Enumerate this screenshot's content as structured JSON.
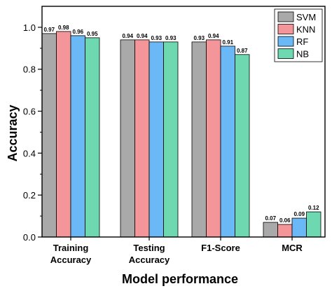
{
  "chart_data": {
    "type": "bar",
    "title": "",
    "xlabel": "Model performance",
    "ylabel": "Accuracy",
    "categories": [
      "Training\nAccuracy",
      "Testing\nAccuracy",
      "F1-Score",
      "MCR"
    ],
    "series": [
      {
        "name": "SVM",
        "color": "#A9A9A9",
        "values": [
          0.97,
          0.94,
          0.93,
          0.07
        ],
        "labels": [
          "0.97",
          "0.94",
          "0.93",
          "0.07"
        ]
      },
      {
        "name": "KNN",
        "color": "#F4959A",
        "values": [
          0.98,
          0.94,
          0.94,
          0.06
        ],
        "labels": [
          "0.98",
          "0.94",
          "0.94",
          "0.06"
        ]
      },
      {
        "name": "RF",
        "color": "#6AB8F6",
        "values": [
          0.96,
          0.93,
          0.91,
          0.09
        ],
        "labels": [
          "0.96",
          "0.93",
          "0.91",
          "0.09"
        ]
      },
      {
        "name": "NB",
        "color": "#6ED8B0",
        "values": [
          0.95,
          0.93,
          0.87,
          0.12
        ],
        "labels": [
          "0.95",
          "0.93",
          "0.87",
          "0.12"
        ]
      }
    ],
    "ylim": [
      0,
      1.1
    ],
    "yticks": [
      0.0,
      0.2,
      0.4,
      0.6,
      0.8,
      1.0
    ],
    "ytick_labels": [
      "0.0",
      "0.2",
      "0.4",
      "0.6",
      "0.8",
      "1.0"
    ],
    "grid": false,
    "legend_position": "top-right"
  }
}
